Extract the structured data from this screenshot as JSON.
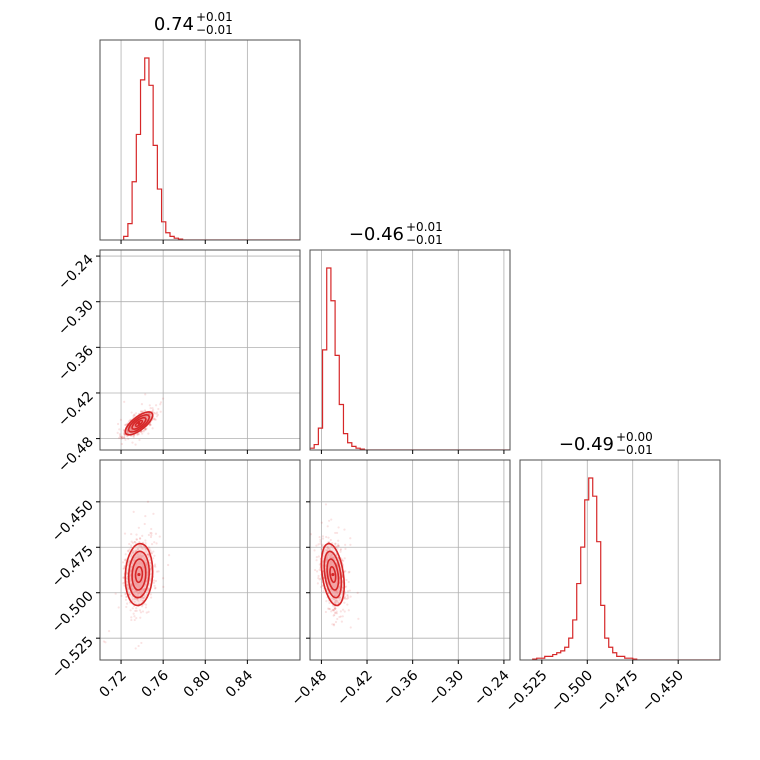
{
  "colors": {
    "series": "#d62728",
    "fill": "#f2a0a1",
    "grid": "#b0b0b0",
    "frame": "#4d4d4d"
  },
  "chart_data": {
    "type": "corner",
    "parameters": [
      {
        "median": "0.74",
        "plus": "+0.01",
        "minus": "−0.01"
      },
      {
        "median": "−0.46",
        "plus": "+0.01",
        "minus": "−0.01"
      },
      {
        "median": "−0.49",
        "plus": "+0.00",
        "minus": "−0.01"
      }
    ],
    "ranges": [
      [
        0.7,
        0.89
      ],
      [
        -0.495,
        -0.232
      ],
      [
        -0.537,
        -0.427
      ]
    ],
    "ticks": [
      {
        "values": [
          0.72,
          0.76,
          0.8,
          0.84
        ],
        "labels": [
          "0.72",
          "0.76",
          "0.80",
          "0.84"
        ]
      },
      {
        "values": [
          -0.48,
          -0.42,
          -0.36,
          -0.3,
          -0.24
        ],
        "labels": [
          "−0.48",
          "−0.42",
          "−0.36",
          "−0.30",
          "−0.24"
        ]
      },
      {
        "values": [
          -0.525,
          -0.5,
          -0.475,
          -0.45
        ],
        "labels": [
          "−0.525",
          "−0.500",
          "−0.475",
          "−0.450"
        ]
      }
    ],
    "histograms": [
      {
        "param": 0,
        "bin_start": 0.7225,
        "bin_width": 0.004,
        "counts": [
          0.02,
          0.09,
          0.32,
          0.58,
          0.88,
          1.0,
          0.85,
          0.52,
          0.28,
          0.1,
          0.04,
          0.02,
          0.01,
          0.005
        ]
      },
      {
        "param": 1,
        "bin_start": -0.495,
        "bin_width": 0.0055,
        "counts": [
          0.01,
          0.03,
          0.12,
          0.55,
          1.0,
          0.82,
          0.52,
          0.25,
          0.09,
          0.04,
          0.02,
          0.01,
          0.005
        ]
      },
      {
        "param": 2,
        "bin_start": -0.53,
        "bin_width": 0.0022,
        "counts": [
          0.005,
          0.01,
          0.01,
          0.02,
          0.02,
          0.03,
          0.04,
          0.05,
          0.07,
          0.12,
          0.22,
          0.42,
          0.62,
          0.88,
          1.0,
          0.9,
          0.65,
          0.3,
          0.12,
          0.07,
          0.04,
          0.02,
          0.02,
          0.01,
          0.01,
          0.005
        ]
      }
    ],
    "joint": [
      {
        "x_param": 0,
        "y_param": 1,
        "center": [
          0.737,
          -0.46
        ],
        "sd": [
          0.0065,
          0.0075
        ],
        "rho": 0.72
      },
      {
        "x_param": 0,
        "y_param": 2,
        "center": [
          0.737,
          -0.49
        ],
        "sd": [
          0.0065,
          0.0085
        ],
        "rho": 0.1
      },
      {
        "x_param": 1,
        "y_param": 2,
        "center": [
          -0.465,
          -0.49
        ],
        "sd": [
          0.0075,
          0.0085
        ],
        "rho": -0.35
      }
    ],
    "contour_levels_sigma": [
      0.5,
      1.0,
      1.5,
      2.0
    ],
    "grid": true
  }
}
